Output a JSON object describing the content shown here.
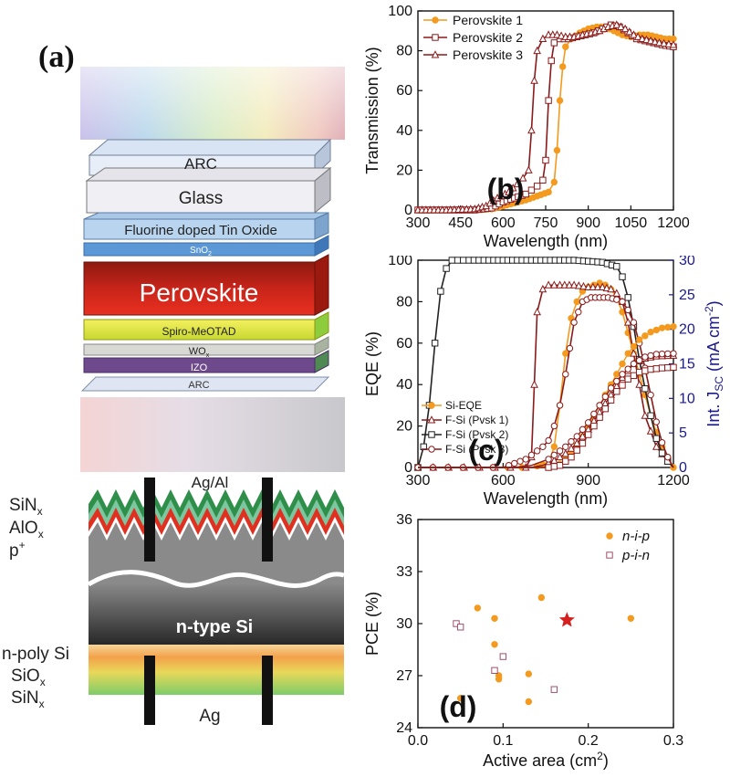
{
  "panel_a": {
    "label": "(a)",
    "layers": [
      "ARC",
      "Glass",
      "Fluorine doped Tin Oxide",
      "SnO",
      "Perovskite",
      "Spiro-MeOTAD",
      "WO",
      "IZO",
      "ARC"
    ],
    "layer_subscripts": {
      "SnO": "2",
      "WO": "x"
    },
    "contact_top": "Ag/Al",
    "contact_bottom": "Ag",
    "si_labels": {
      "sin_top": "SiN",
      "sin_top_sub": "x",
      "alo": "AlO",
      "alo_sub": "x",
      "p_plus": "p",
      "p_plus_sup": "+",
      "n_type": "n-type Si",
      "n_poly": "n-poly Si",
      "sio": "SiO",
      "sio_sub": "x",
      "sin_bottom": "SiN",
      "sin_bottom_sub": "x"
    }
  },
  "chart_data": [
    {
      "id": "b",
      "label": "(b)",
      "type": "line",
      "xlabel": "Wavelength (nm)",
      "ylabel": "Transmission (%)",
      "xlim": [
        300,
        1200
      ],
      "ylim": [
        0,
        100
      ],
      "xticks": [
        300,
        450,
        600,
        750,
        900,
        1050,
        1200
      ],
      "yticks": [
        0,
        20,
        40,
        60,
        80,
        100
      ],
      "colors": [
        "#f39a1f",
        "#8b1a1a",
        "#8b1a1a"
      ],
      "series": [
        {
          "name": "Perovskite 1",
          "x": [
            300,
            400,
            500,
            560,
            600,
            640,
            680,
            720,
            760,
            780,
            790,
            800,
            810,
            820,
            840,
            870,
            900,
            930,
            960,
            990,
            1020,
            1050,
            1080,
            1110,
            1140,
            1170,
            1200
          ],
          "values": [
            0,
            0,
            0,
            0.5,
            2,
            3.5,
            5,
            7,
            9,
            14,
            30,
            55,
            72,
            82,
            86,
            89,
            91,
            92,
            92,
            90,
            88,
            87,
            88,
            88,
            87,
            86,
            86
          ]
        },
        {
          "name": "Perovskite 2",
          "x": [
            300,
            400,
            500,
            560,
            600,
            640,
            680,
            700,
            720,
            740,
            750,
            760,
            770,
            780,
            800,
            830,
            860,
            890,
            920,
            950,
            980,
            1010,
            1040,
            1070,
            1100,
            1130,
            1160,
            1200
          ],
          "values": [
            0,
            0,
            0,
            1,
            4,
            6,
            8,
            10,
            12,
            15,
            25,
            55,
            75,
            84,
            86,
            86,
            87,
            88,
            89,
            91,
            93,
            92,
            89,
            86,
            85,
            84,
            83,
            82
          ]
        },
        {
          "name": "Perovskite 3",
          "x": [
            300,
            400,
            500,
            540,
            580,
            620,
            650,
            670,
            690,
            700,
            710,
            720,
            740,
            760,
            790,
            820,
            850,
            880,
            910,
            940,
            970,
            1000,
            1030,
            1060,
            1090,
            1120,
            1150,
            1200
          ],
          "values": [
            0,
            0,
            0.5,
            2,
            6,
            9,
            13,
            16,
            20,
            40,
            65,
            80,
            86,
            88,
            88,
            87,
            87,
            88,
            89,
            90,
            92,
            93,
            91,
            88,
            86,
            85,
            84,
            83
          ]
        }
      ]
    },
    {
      "id": "c",
      "label": "(c)",
      "type": "line",
      "xlabel": "Wavelength (nm)",
      "ylabel": "EQE (%)",
      "ylabel_right": "Int. J",
      "ylabel_right_sub": "SC",
      "ylabel_right_unit": " (mA cm",
      "ylabel_right_sup": "-2",
      "ylabel_right_close": ")",
      "xlim": [
        300,
        1200
      ],
      "ylim": [
        0,
        100
      ],
      "ylim_right": [
        0,
        30
      ],
      "xticks": [
        300,
        600,
        900,
        1200
      ],
      "yticks": [
        0,
        20,
        40,
        60,
        80,
        100
      ],
      "yticks_right": [
        0,
        5,
        10,
        15,
        20,
        25,
        30
      ],
      "colors": [
        "#f39a1f",
        "#8b1a1a",
        "#222222",
        "#8b1a1a"
      ],
      "series": [
        {
          "name": "Si-EQE",
          "x": [
            300,
            600,
            700,
            760,
            780,
            800,
            820,
            840,
            860,
            880,
            900,
            920,
            940,
            960,
            980,
            1000,
            1020,
            1040,
            1060,
            1080,
            1100,
            1120,
            1140,
            1160,
            1180,
            1200
          ],
          "values": [
            0,
            0,
            0,
            2,
            10,
            30,
            55,
            72,
            80,
            85,
            87,
            88,
            89,
            88,
            86,
            82,
            75,
            65,
            55,
            45,
            35,
            25,
            17,
            10,
            5,
            0
          ]
        },
        {
          "name": "F-Si (Pvsk 1)",
          "x": [
            300,
            680,
            700,
            710,
            720,
            740,
            760,
            800,
            850,
            900,
            950,
            980,
            1000,
            1020,
            1040,
            1060,
            1080,
            1100,
            1140,
            1180,
            1200
          ],
          "values": [
            0,
            0,
            5,
            40,
            75,
            86,
            88,
            88,
            88,
            87,
            87,
            86,
            84,
            80,
            70,
            55,
            40,
            25,
            10,
            3,
            0
          ]
        },
        {
          "name": "F-Si (Pvsk 2)",
          "x": [
            300,
            320,
            340,
            360,
            380,
            400,
            420,
            440,
            480,
            550,
            650,
            750,
            850,
            950,
            1000,
            1020,
            1040,
            1060,
            1080,
            1100,
            1120,
            1140,
            1160,
            1180,
            1200
          ],
          "values": [
            0,
            10,
            30,
            60,
            85,
            96,
            100,
            100,
            100,
            100,
            100,
            100,
            100,
            99,
            97,
            92,
            82,
            68,
            52,
            38,
            25,
            14,
            7,
            3,
            0
          ]
        },
        {
          "name": "F-Si (Pvsk 3)",
          "x": [
            300,
            600,
            640,
            680,
            700,
            720,
            740,
            760,
            780,
            800,
            820,
            850,
            880,
            910,
            940,
            970,
            1000,
            1020,
            1040,
            1060,
            1080,
            1100,
            1120,
            1140,
            1160,
            1180,
            1200
          ],
          "values": [
            0,
            0,
            2,
            4,
            6,
            8,
            10,
            13,
            20,
            30,
            45,
            70,
            80,
            82,
            82,
            82,
            81,
            80,
            76,
            70,
            60,
            48,
            35,
            22,
            12,
            5,
            0
          ]
        }
      ],
      "series_right": [
        {
          "name": "Si-EQE Int. Jsc",
          "x": [
            300,
            760,
            800,
            840,
            880,
            920,
            960,
            1000,
            1040,
            1080,
            1120,
            1160,
            1200
          ],
          "values": [
            0,
            0,
            0.5,
            2,
            4.5,
            7.5,
            10.5,
            13.5,
            16.5,
            18.5,
            19.6,
            20.2,
            20.4
          ]
        },
        {
          "name": "F-Si (Pvsk 1) Int. Jsc",
          "x": [
            300,
            700,
            740,
            780,
            820,
            860,
            900,
            940,
            980,
            1020,
            1060,
            1100,
            1140,
            1200
          ],
          "values": [
            0,
            0,
            0.3,
            1,
            2,
            3.5,
            5.5,
            8,
            10.5,
            13,
            15,
            15.8,
            16.1,
            16.2
          ]
        },
        {
          "name": "F-Si (Pvsk 3) Int. Jsc",
          "x": [
            300,
            640,
            700,
            760,
            820,
            860,
            900,
            940,
            980,
            1020,
            1060,
            1100,
            1140,
            1200
          ],
          "values": [
            0,
            0,
            0.3,
            1.2,
            3,
            4.5,
            6.5,
            9,
            11.5,
            13.5,
            15,
            16,
            16.4,
            16.5
          ]
        },
        {
          "name": "F-Si (Pvsk 2) Int. Jsc",
          "x": [
            300,
            760,
            800,
            840,
            880,
            920,
            960,
            1000,
            1040,
            1080,
            1120,
            1160,
            1200
          ],
          "values": [
            0,
            0,
            0.3,
            1.5,
            3.5,
            6,
            8.5,
            11,
            12.8,
            13.8,
            14.2,
            14.4,
            14.5
          ]
        }
      ]
    },
    {
      "id": "d",
      "label": "(d)",
      "type": "scatter",
      "xlabel": "Active area (cm",
      "xlabel_sup": "2",
      "xlabel_close": ")",
      "ylabel": "PCE (%)",
      "xlim": [
        0.0,
        0.3
      ],
      "ylim": [
        24,
        36
      ],
      "xticks": [
        0.0,
        0.1,
        0.2,
        0.3
      ],
      "xticklabels": [
        "0.0",
        "0.1",
        "0.2",
        "0.3"
      ],
      "yticks": [
        24,
        27,
        30,
        33,
        36
      ],
      "series": [
        {
          "name": "n-i-p",
          "color": "#f39a1f",
          "marker": "circle",
          "x": [
            0.07,
            0.09,
            0.09,
            0.095,
            0.095,
            0.13,
            0.13,
            0.145,
            0.25,
            0.05
          ],
          "values": [
            30.9,
            30.3,
            28.8,
            27.0,
            26.8,
            27.1,
            25.5,
            31.5,
            30.3,
            25.7
          ]
        },
        {
          "name": "p-i-n",
          "color": "#a0506a",
          "marker": "square",
          "x": [
            0.045,
            0.05,
            0.09,
            0.1,
            0.16
          ],
          "values": [
            30.0,
            29.8,
            27.3,
            28.1,
            26.2
          ]
        },
        {
          "name": "",
          "color": "#d62020",
          "marker": "star",
          "x": [
            0.175
          ],
          "values": [
            30.2
          ]
        }
      ]
    }
  ]
}
